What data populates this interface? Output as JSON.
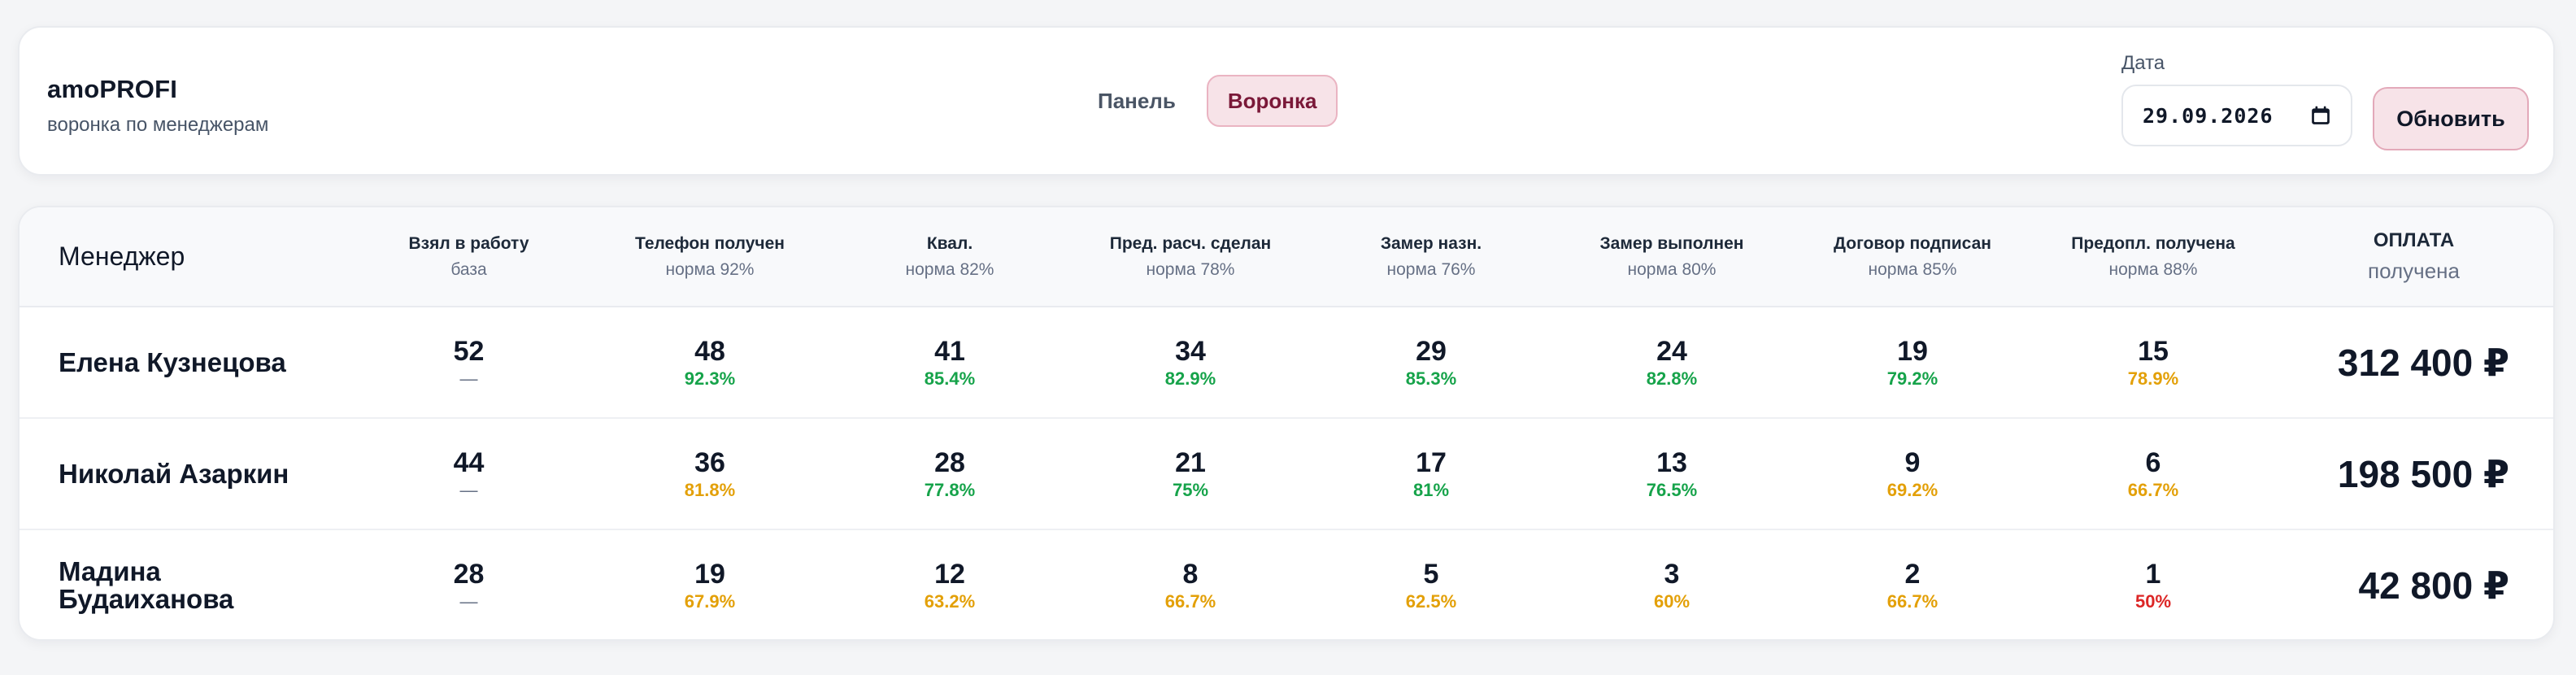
{
  "header": {
    "app_title": "amoPROFI",
    "app_subtitle": "воронка по менеджерам",
    "tabs": [
      {
        "label": "Панель",
        "active": false
      },
      {
        "label": "Воронка",
        "active": true
      }
    ],
    "date_label": "Дата",
    "date_value": "29.09.2026",
    "refresh_label": "Обновить"
  },
  "colors": {
    "accent": "#f7e3e8",
    "accent_text": "#7a1838",
    "good": "#16a34a",
    "warn": "#e3a008",
    "bad": "#dc2626"
  },
  "table": {
    "manager_header": "Менеджер",
    "columns": [
      {
        "title": "Взял в работу",
        "sub": "база"
      },
      {
        "title": "Телефон получен",
        "sub": "норма 92%"
      },
      {
        "title": "Квал.",
        "sub": "норма 82%"
      },
      {
        "title": "Пред. расч. сделан",
        "sub": "норма 78%"
      },
      {
        "title": "Замер назн.",
        "sub": "норма 76%"
      },
      {
        "title": "Замер выполнен",
        "sub": "норма 80%"
      },
      {
        "title": "Договор подписан",
        "sub": "норма 85%"
      },
      {
        "title": "Предопл. получена",
        "sub": "норма 88%"
      }
    ],
    "payment_header": {
      "title": "ОПЛАТА",
      "sub": "получена"
    },
    "rows": [
      {
        "name": "Елена Кузнецова",
        "cells": [
          {
            "value": "52",
            "pct": "—",
            "status": "dash"
          },
          {
            "value": "48",
            "pct": "92.3%",
            "status": "green"
          },
          {
            "value": "41",
            "pct": "85.4%",
            "status": "green"
          },
          {
            "value": "34",
            "pct": "82.9%",
            "status": "green"
          },
          {
            "value": "29",
            "pct": "85.3%",
            "status": "green"
          },
          {
            "value": "24",
            "pct": "82.8%",
            "status": "green"
          },
          {
            "value": "19",
            "pct": "79.2%",
            "status": "green"
          },
          {
            "value": "15",
            "pct": "78.9%",
            "status": "amber"
          }
        ],
        "payment": "312 400 ₽"
      },
      {
        "name": "Николай Азаркин",
        "cells": [
          {
            "value": "44",
            "pct": "—",
            "status": "dash"
          },
          {
            "value": "36",
            "pct": "81.8%",
            "status": "amber"
          },
          {
            "value": "28",
            "pct": "77.8%",
            "status": "green"
          },
          {
            "value": "21",
            "pct": "75%",
            "status": "green"
          },
          {
            "value": "17",
            "pct": "81%",
            "status": "green"
          },
          {
            "value": "13",
            "pct": "76.5%",
            "status": "green"
          },
          {
            "value": "9",
            "pct": "69.2%",
            "status": "amber"
          },
          {
            "value": "6",
            "pct": "66.7%",
            "status": "amber"
          }
        ],
        "payment": "198 500 ₽"
      },
      {
        "name": "Мадина Будаиханова",
        "cells": [
          {
            "value": "28",
            "pct": "—",
            "status": "dash"
          },
          {
            "value": "19",
            "pct": "67.9%",
            "status": "amber"
          },
          {
            "value": "12",
            "pct": "63.2%",
            "status": "amber"
          },
          {
            "value": "8",
            "pct": "66.7%",
            "status": "amber"
          },
          {
            "value": "5",
            "pct": "62.5%",
            "status": "amber"
          },
          {
            "value": "3",
            "pct": "60%",
            "status": "amber"
          },
          {
            "value": "2",
            "pct": "66.7%",
            "status": "amber"
          },
          {
            "value": "1",
            "pct": "50%",
            "status": "red"
          }
        ],
        "payment": "42 800 ₽"
      }
    ]
  }
}
